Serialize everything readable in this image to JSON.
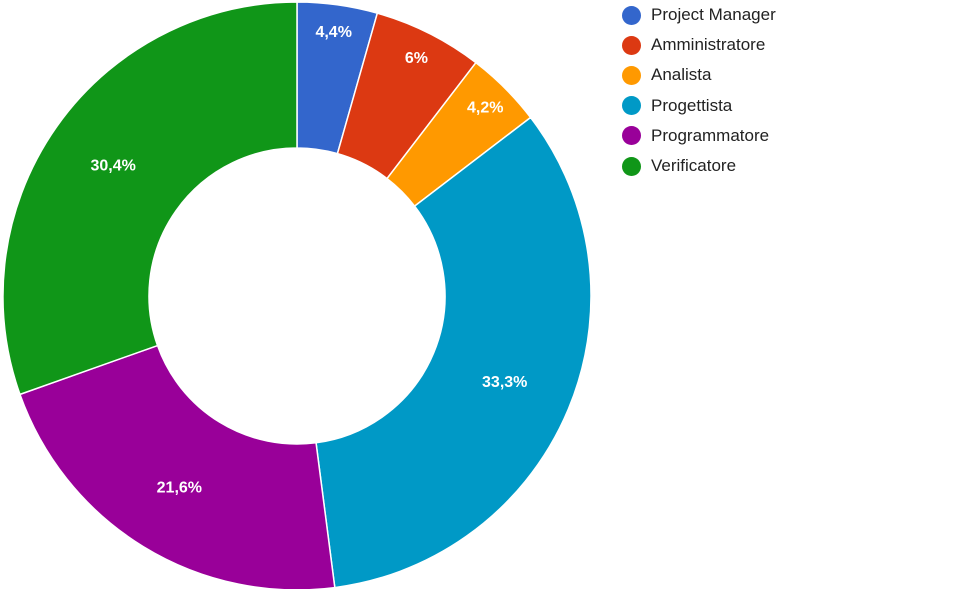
{
  "chart_data": {
    "type": "pie",
    "variant": "donut",
    "title": "",
    "legend_position": "right",
    "slices": [
      {
        "name": "Project Manager",
        "value": 4.4,
        "label": "4,4%",
        "color": "#3366cc"
      },
      {
        "name": "Amministratore",
        "value": 6.0,
        "label": "6%",
        "color": "#dc3912"
      },
      {
        "name": "Analista",
        "value": 4.2,
        "label": "4,2%",
        "color": "#ff9900"
      },
      {
        "name": "Progettista",
        "value": 33.3,
        "label": "33,3%",
        "color": "#0099c6"
      },
      {
        "name": "Programmatore",
        "value": 21.6,
        "label": "21,6%",
        "color": "#990099"
      },
      {
        "name": "Verificatore",
        "value": 30.4,
        "label": "30,4%",
        "color": "#109618"
      }
    ]
  }
}
